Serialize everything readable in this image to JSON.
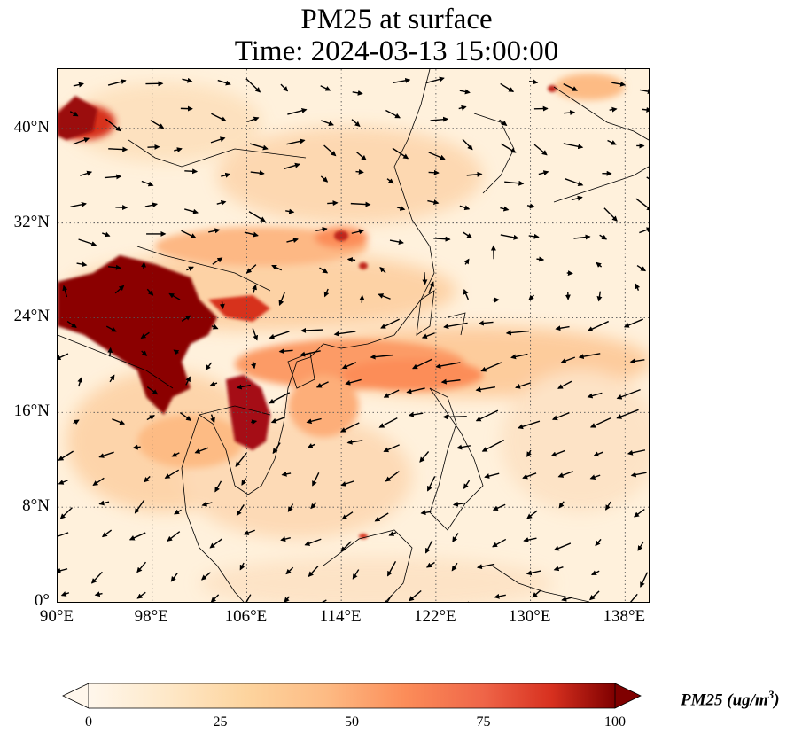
{
  "title_line1": "PM25 at surface",
  "title_line2": "Time: 2024-03-13 15:00:00",
  "map": {
    "extent": {
      "lon_min": 90,
      "lon_max": 140,
      "lat_min": 0,
      "lat_max": 45
    },
    "lon_ticks": [
      {
        "value": 90,
        "label": "90°E"
      },
      {
        "value": 98,
        "label": "98°E"
      },
      {
        "value": 106,
        "label": "106°E"
      },
      {
        "value": 114,
        "label": "114°E"
      },
      {
        "value": 122,
        "label": "122°E"
      },
      {
        "value": 130,
        "label": "130°E"
      },
      {
        "value": 138,
        "label": "138°E"
      }
    ],
    "lat_ticks": [
      {
        "value": 0,
        "label": "0°"
      },
      {
        "value": 8,
        "label": "8°N"
      },
      {
        "value": 16,
        "label": "16°N"
      },
      {
        "value": 24,
        "label": "24°N"
      },
      {
        "value": 32,
        "label": "32°N"
      },
      {
        "value": 40,
        "label": "40°N"
      }
    ],
    "gridlines": "dotted",
    "wind_vectors": true
  },
  "colorbar": {
    "label": "PM25 (ug/m",
    "label_sup": "3",
    "label_close": ")",
    "min": 0,
    "max": 100,
    "ticks": [
      "0",
      "25",
      "50",
      "75",
      "100"
    ],
    "colormap": "OrRd",
    "extend": "both"
  },
  "colors": {
    "low": "#fff7ec",
    "mid_low": "#fdd49e",
    "mid": "#fc8d59",
    "high": "#d7301f",
    "max": "#7f0000"
  }
}
